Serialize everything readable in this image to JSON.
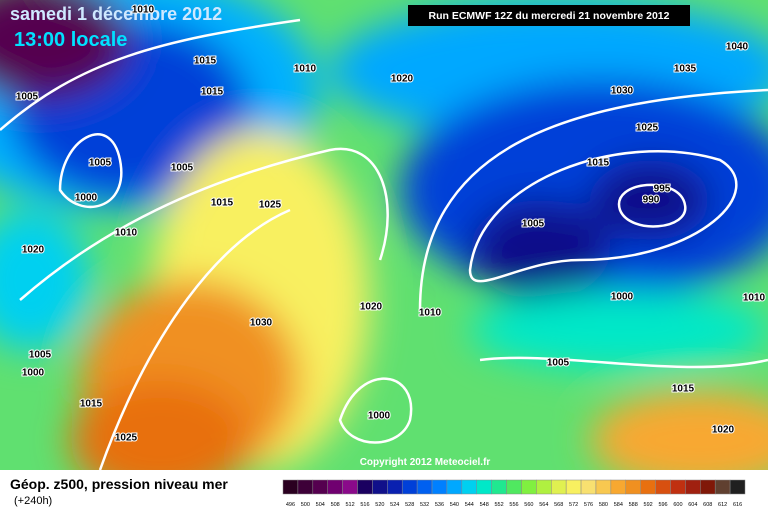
{
  "header": {
    "title": "samedi 1 décembre 2012",
    "subtitle": "13:00 locale",
    "run": "Run ECMWF 12Z du mercredi 21 novembre 2012"
  },
  "isobar_labels": [
    "1010",
    "1015",
    "1010",
    "1005",
    "1015",
    "1020",
    "1005",
    "1005",
    "1000",
    "1015",
    "1025",
    "1010",
    "1020",
    "1030",
    "1020",
    "1010",
    "1005",
    "1000",
    "1015",
    "1025",
    "1000",
    "1040",
    "1035",
    "1030",
    "1025",
    "1015",
    "995",
    "990",
    "1005",
    "1000",
    "1010",
    "1005",
    "1015",
    "1020"
  ],
  "copyright": "Copyright 2012 Meteociel.fr",
  "footer": {
    "title": "Géop. z500, pression niveau mer",
    "lead": "(+240h)"
  },
  "legend": {
    "values": [
      496,
      500,
      504,
      508,
      512,
      516,
      520,
      524,
      528,
      532,
      536,
      540,
      544,
      548,
      552,
      556,
      560,
      564,
      568,
      572,
      576,
      580,
      584,
      588,
      592,
      596,
      600,
      604,
      608,
      612,
      616
    ],
    "colors": [
      "#2a0020",
      "#3d0038",
      "#55004f",
      "#700070",
      "#8a0a8a",
      "#1a0060",
      "#10108a",
      "#0a20b0",
      "#0040d8",
      "#0060f0",
      "#0080ff",
      "#00a8ff",
      "#00d0f0",
      "#00e8c8",
      "#20e890",
      "#50e860",
      "#80f040",
      "#b0f040",
      "#e0f050",
      "#f8f060",
      "#f8e070",
      "#f8c850",
      "#f8a830",
      "#f09020",
      "#e87010",
      "#d85010",
      "#c03010",
      "#a02010",
      "#801808",
      "#604030",
      "#202020"
    ]
  }
}
